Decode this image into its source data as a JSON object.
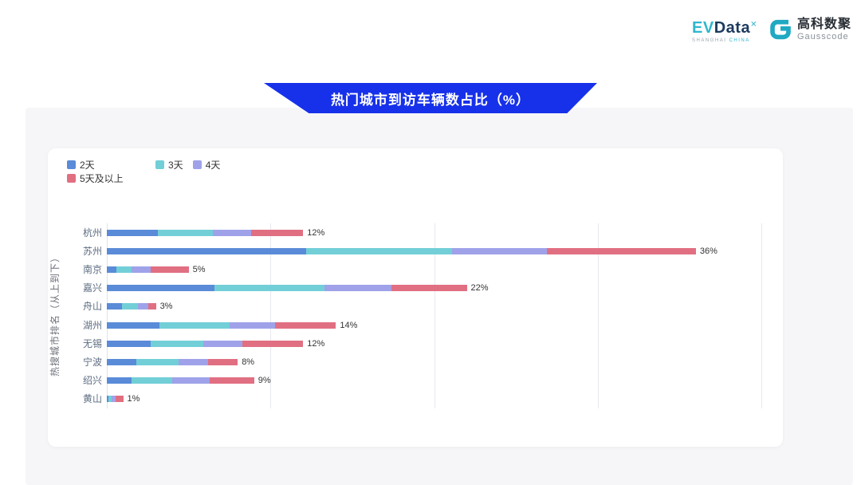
{
  "header": {
    "evdata_logo": {
      "ev": "EV",
      "data": "Data",
      "sup": "✕",
      "sub_left": "SHANGHAI",
      "sub_right": "CHINA"
    },
    "gausscode_logo": {
      "name_cn": "高科数聚",
      "name_en": "Gausscode",
      "icon_color": "#1FA9C2"
    }
  },
  "banner": {
    "title": "热门城市到访车辆数占比（%）",
    "color": "#1731EA"
  },
  "chart_data": {
    "type": "bar",
    "orientation": "horizontal-stacked",
    "title": "热门城市到访车辆数占比（%）",
    "ylabel": "热搜城市排名（从上到下）",
    "xlabel": "",
    "categories": [
      "杭州",
      "苏州",
      "南京",
      "嘉兴",
      "舟山",
      "湖州",
      "无锡",
      "宁波",
      "绍兴",
      "黄山"
    ],
    "totals": [
      12,
      36,
      5,
      22,
      3,
      14,
      12,
      8,
      9,
      1
    ],
    "totals_label": [
      "12%",
      "36%",
      "5%",
      "22%",
      "3%",
      "14%",
      "12%",
      "8%",
      "9%",
      "1%"
    ],
    "series": [
      {
        "name": "2天",
        "color": "#5A8BD8",
        "values": [
          3.1,
          12.2,
          0.6,
          6.6,
          0.95,
          3.2,
          2.7,
          1.8,
          1.5,
          0.1
        ]
      },
      {
        "name": "3天",
        "color": "#72CFD7",
        "values": [
          3.4,
          8.9,
          0.9,
          6.7,
          0.95,
          4.3,
          3.2,
          2.6,
          2.5,
          0.2
        ]
      },
      {
        "name": "4天",
        "color": "#9FA2E9",
        "values": [
          2.3,
          5.8,
          1.2,
          4.1,
          0.65,
          2.8,
          2.4,
          1.8,
          2.3,
          0.25
        ]
      },
      {
        "name": "5天及以上",
        "color": "#E16F82",
        "values": [
          3.2,
          9.1,
          2.3,
          4.6,
          0.45,
          3.7,
          3.7,
          1.8,
          2.7,
          0.45
        ]
      }
    ],
    "xlim": [
      0,
      40
    ],
    "gridlines": [
      0,
      10,
      20,
      30,
      40
    ],
    "x_tick_labels_visible": false,
    "legend_position": "top-left",
    "grid": "vertical-only",
    "label_color": "#333333",
    "axis_label_color": "#5E6D82"
  }
}
